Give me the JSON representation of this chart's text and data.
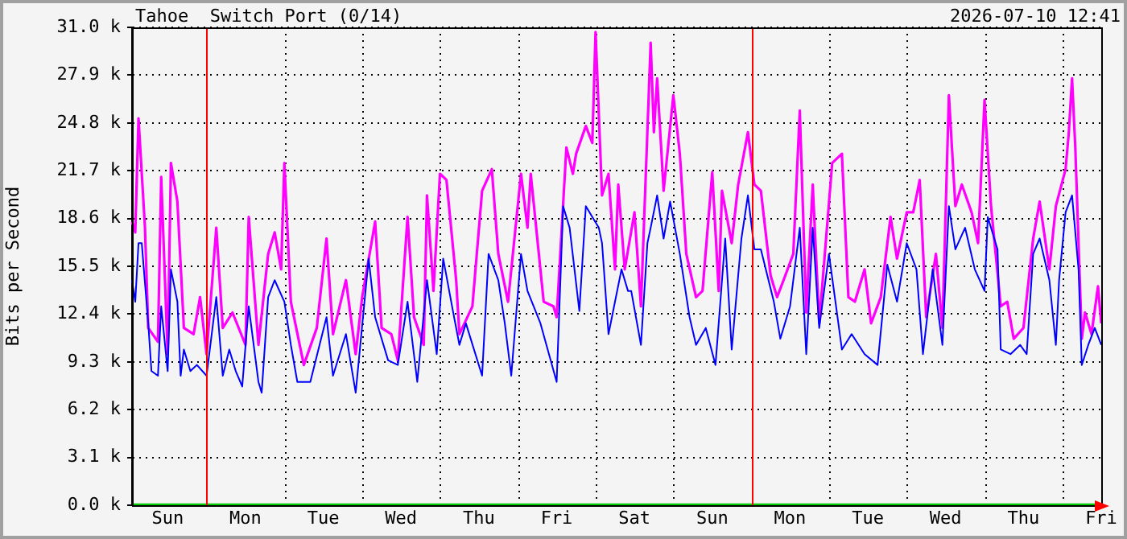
{
  "chart_data": {
    "type": "line",
    "title": "Tahoe  Switch Port (0/14)",
    "ylabel": "Bits per Second",
    "annotations": [
      "2026-07-10 12:41"
    ],
    "categories": [
      null,
      null,
      null,
      null,
      null,
      null,
      null,
      null,
      null,
      null,
      null,
      "Sun",
      null,
      null,
      null,
      null,
      null,
      null,
      null,
      null,
      null,
      null,
      null,
      null,
      null,
      null,
      null,
      null,
      null,
      null,
      null,
      null,
      null,
      null,
      null,
      "Mon",
      null,
      null,
      null,
      null,
      null,
      null,
      null,
      null,
      null,
      null,
      null,
      null,
      null,
      null,
      null,
      null,
      null,
      null,
      null,
      null,
      null,
      null,
      null,
      "Tue",
      null,
      null,
      null,
      null,
      null,
      null,
      null,
      null,
      null,
      null,
      null,
      null,
      null,
      null,
      null,
      null,
      null,
      null,
      null,
      null,
      null,
      null,
      null,
      "Wed",
      null,
      null,
      null,
      null,
      null,
      null,
      null,
      null,
      null,
      null,
      null,
      null,
      null,
      null,
      null,
      null,
      null,
      null,
      null,
      null,
      null,
      null,
      null,
      "Thu",
      null,
      null,
      null,
      null,
      null,
      null,
      null,
      null,
      null,
      null,
      null,
      null,
      null,
      null,
      null,
      null,
      null,
      null,
      null,
      null,
      null,
      null,
      null,
      "Fri",
      null,
      null,
      null,
      null,
      null,
      null,
      null,
      null,
      null,
      null,
      null,
      null,
      null,
      null,
      null,
      null,
      null,
      null,
      null,
      null,
      null,
      null,
      null,
      "Sat",
      null,
      null,
      null,
      null,
      null,
      null,
      null,
      null,
      null,
      null,
      null,
      null,
      null,
      null,
      null,
      null,
      null,
      null,
      null,
      null,
      null,
      null,
      null,
      "Sun",
      null,
      null,
      null,
      null,
      null,
      null,
      null,
      null,
      null,
      null,
      null,
      null,
      null,
      null,
      null,
      null,
      null,
      null,
      null,
      null,
      null,
      null,
      null,
      "Mon",
      null,
      null,
      null,
      null,
      null,
      null,
      null,
      null,
      null,
      null,
      null,
      null,
      null,
      null,
      null,
      null,
      null,
      null,
      null,
      null,
      null,
      null,
      null,
      "Tue",
      null,
      null,
      null,
      null,
      null,
      null,
      null,
      null,
      null,
      null,
      null,
      null,
      null,
      null,
      null,
      null,
      null,
      null,
      null,
      null,
      null,
      null,
      null,
      "Wed",
      null,
      null,
      null,
      null,
      null,
      null,
      null,
      null,
      null,
      null,
      null,
      null,
      null,
      null,
      null,
      null,
      null,
      null,
      null,
      null,
      null,
      null,
      null,
      "Thu",
      null,
      null,
      null,
      null,
      null,
      null,
      null,
      null,
      null,
      null,
      null,
      null,
      null,
      null,
      null,
      null,
      null,
      null,
      null,
      null,
      null,
      null,
      null,
      "Fri"
    ],
    "ylim": [
      0,
      31000
    ],
    "yticks": [
      {
        "value": 0,
        "label": "0.0 k"
      },
      {
        "value": 3100,
        "label": "3.1 k"
      },
      {
        "value": 6200,
        "label": "6.2 k"
      },
      {
        "value": 9300,
        "label": "9.3 k"
      },
      {
        "value": 12400,
        "label": "12.4 k"
      },
      {
        "value": 15500,
        "label": "15.5 k"
      },
      {
        "value": 18600,
        "label": "18.6 k"
      },
      {
        "value": 21700,
        "label": "21.7 k"
      },
      {
        "value": 24800,
        "label": "24.8 k"
      },
      {
        "value": 27900,
        "label": "27.9 k"
      },
      {
        "value": 31000,
        "label": "31.0 k"
      }
    ],
    "grid": true,
    "series": [
      {
        "color": "#00cc00",
        "values": [
          0,
          0,
          0,
          0,
          0,
          0,
          0,
          0,
          0,
          0,
          0,
          0,
          0,
          0,
          0,
          0,
          0,
          0,
          0,
          0,
          0,
          0,
          0,
          0,
          0,
          0,
          0,
          0,
          0,
          0,
          0,
          0,
          0,
          0,
          0,
          0,
          0,
          0,
          0,
          0,
          0,
          0,
          0,
          0,
          0,
          0,
          0,
          0,
          0,
          0,
          0,
          0,
          0,
          0,
          0,
          0,
          0,
          0,
          0,
          0,
          0,
          0,
          0,
          0,
          0,
          0,
          0,
          0,
          0,
          0,
          0,
          0,
          0,
          0,
          0,
          0,
          0,
          0,
          0,
          0,
          0,
          0,
          0,
          0,
          0,
          0,
          0,
          0,
          0,
          0,
          0,
          0,
          0,
          0,
          0,
          0,
          0,
          0,
          0,
          0,
          0,
          0,
          0,
          0,
          0,
          0,
          0,
          0,
          0,
          0,
          0,
          0,
          0,
          0,
          0,
          0,
          0,
          0,
          0,
          0,
          0,
          0,
          0,
          0,
          0,
          0,
          0,
          0,
          0,
          0,
          0,
          0,
          0,
          0,
          0,
          0,
          0,
          0,
          0,
          0,
          0,
          0,
          0,
          0,
          0,
          0,
          0,
          0,
          0,
          0,
          0,
          0,
          0,
          0,
          0,
          0,
          0,
          0,
          0,
          0,
          0,
          0,
          0,
          0,
          0,
          0,
          0,
          0,
          0,
          0,
          0,
          0,
          0,
          0,
          0,
          0,
          0,
          0,
          0,
          0,
          0,
          0,
          0,
          0,
          0,
          0,
          0,
          0,
          0,
          0,
          0,
          0,
          0,
          0,
          0,
          0,
          0,
          0,
          0,
          0,
          0,
          0,
          0,
          0,
          0,
          0,
          0,
          0,
          0,
          0,
          0,
          0,
          0,
          0,
          0,
          0,
          0,
          0,
          0,
          0,
          0,
          0,
          0,
          0,
          0,
          0,
          0,
          0,
          0,
          0,
          0,
          0,
          0,
          0,
          0,
          0,
          0,
          0,
          0,
          0,
          0,
          0,
          0,
          0,
          0,
          0,
          0,
          0,
          0,
          0,
          0,
          0,
          0,
          0,
          0,
          0,
          0,
          0,
          0,
          0,
          0,
          0,
          0,
          0,
          0,
          0,
          0,
          0,
          0,
          0,
          0,
          0,
          0,
          0,
          0,
          0,
          0,
          0,
          0,
          0,
          0,
          0,
          0,
          0,
          0,
          0,
          0,
          0,
          0,
          0,
          0,
          0,
          0,
          0,
          0,
          0,
          0,
          0,
          0,
          0
        ]
      },
      {
        "color": "#ff00ff",
        "values": [
          18400,
          17700,
          25100,
          null,
          18000,
          11500,
          null,
          null,
          10600,
          21300,
          null,
          9800,
          22200,
          null,
          19700,
          null,
          11500,
          null,
          null,
          11100,
          null,
          13500,
          null,
          9800,
          null,
          null,
          18000,
          null,
          11500,
          null,
          null,
          12500,
          null,
          null,
          null,
          10400,
          18700,
          null,
          null,
          10400,
          null,
          null,
          16300,
          null,
          17700,
          null,
          15300,
          22200,
          null,
          13200,
          null,
          null,
          null,
          9100,
          null,
          null,
          null,
          11500,
          null,
          null,
          17300,
          null,
          11100,
          null,
          null,
          null,
          14600,
          null,
          null,
          9800,
          null,
          13500,
          null,
          null,
          null,
          18400,
          null,
          11500,
          null,
          null,
          11100,
          null,
          9400,
          null,
          null,
          18700,
          null,
          12200,
          null,
          null,
          10400,
          20100,
          null,
          13900,
          null,
          21500,
          null,
          21100,
          null,
          null,
          14600,
          11100,
          null,
          null,
          null,
          12900,
          null,
          null,
          20400,
          null,
          null,
          21800,
          null,
          16300,
          null,
          null,
          13200,
          null,
          null,
          null,
          21500,
          null,
          18000,
          21500,
          null,
          null,
          null,
          13200,
          null,
          null,
          12900,
          12200,
          null,
          null,
          23200,
          null,
          21500,
          22800,
          null,
          null,
          24600,
          null,
          23500,
          30700,
          null,
          20100,
          null,
          21500,
          null,
          15300,
          20800,
          null,
          15300,
          null,
          null,
          19000,
          null,
          12900,
          null,
          null,
          30000,
          24200,
          27700,
          null,
          20400,
          null,
          null,
          26600,
          null,
          22800,
          null,
          16300,
          null,
          null,
          13500,
          null,
          13900,
          null,
          null,
          21600,
          null,
          13900,
          20400,
          null,
          null,
          17000,
          null,
          20800,
          null,
          null,
          24200,
          null,
          20800,
          null,
          20400,
          null,
          null,
          14900,
          null,
          13500,
          null,
          14600,
          null,
          null,
          16300,
          null,
          25600,
          null,
          12500,
          null,
          20800,
          null,
          11800,
          null,
          null,
          null,
          22200,
          null,
          null,
          22800,
          null,
          13500,
          null,
          13200,
          null,
          null,
          15300,
          null,
          11800,
          null,
          null,
          13500,
          null,
          null,
          18700,
          null,
          16000,
          null,
          null,
          19000,
          null,
          19000,
          null,
          21100,
          null,
          12200,
          null,
          null,
          16300,
          null,
          11500,
          null,
          26600,
          null,
          19400,
          null,
          20800,
          null,
          null,
          19000,
          null,
          17000,
          null,
          26300,
          null,
          19400,
          null,
          null,
          12900,
          null,
          13200,
          null,
          10800,
          null,
          null,
          11500,
          null,
          null,
          17300,
          null,
          19700,
          null,
          null,
          15300,
          null,
          19400,
          null,
          null,
          21800,
          24200,
          27700,
          23200,
          null,
          10800,
          12500,
          null,
          11100,
          null,
          14200,
          11800
        ]
      },
      {
        "color": "#0000ff",
        "values": [
          14600,
          13200,
          17000,
          17000,
          null,
          11800,
          8700,
          null,
          8400,
          12900,
          null,
          8700,
          15300,
          null,
          13200,
          8400,
          10100,
          null,
          8700,
          null,
          9100,
          null,
          null,
          8400,
          null,
          null,
          13500,
          null,
          8400,
          null,
          10100,
          null,
          8700,
          null,
          7700,
          null,
          12900,
          null,
          null,
          8000,
          7300,
          null,
          13500,
          null,
          14600,
          null,
          null,
          13200,
          null,
          10400,
          null,
          8000,
          null,
          null,
          null,
          8000,
          null,
          null,
          null,
          null,
          12200,
          null,
          8400,
          null,
          null,
          null,
          11100,
          null,
          null,
          7300,
          null,
          null,
          null,
          16000,
          null,
          12200,
          null,
          null,
          null,
          9400,
          null,
          null,
          9100,
          null,
          null,
          13200,
          null,
          null,
          8000,
          null,
          null,
          14600,
          null,
          null,
          9800,
          null,
          16000,
          null,
          null,
          12600,
          null,
          10400,
          null,
          11800,
          null,
          null,
          null,
          null,
          8400,
          null,
          16300,
          null,
          null,
          14600,
          null,
          11800,
          null,
          8400,
          null,
          null,
          16300,
          null,
          13900,
          null,
          null,
          null,
          11800,
          null,
          null,
          null,
          null,
          8000,
          null,
          19400,
          null,
          18000,
          null,
          null,
          12600,
          null,
          19400,
          null,
          18700,
          null,
          18000,
          17000,
          null,
          11100,
          null,
          13200,
          null,
          15300,
          null,
          13900,
          13900,
          null,
          null,
          10400,
          null,
          17000,
          18000,
          null,
          20100,
          null,
          17300,
          null,
          19700,
          null,
          null,
          16300,
          null,
          null,
          12200,
          null,
          10400,
          null,
          null,
          11500,
          null,
          null,
          9100,
          null,
          null,
          17300,
          null,
          10100,
          null,
          null,
          17300,
          null,
          20100,
          null,
          16600,
          null,
          16600,
          null,
          null,
          null,
          13200,
          null,
          10800,
          null,
          null,
          12900,
          null,
          null,
          18000,
          null,
          9800,
          null,
          18000,
          null,
          11500,
          null,
          null,
          16300,
          null,
          null,
          null,
          10100,
          null,
          null,
          11100,
          null,
          null,
          null,
          9800,
          null,
          null,
          null,
          9100,
          null,
          null,
          15600,
          null,
          null,
          13200,
          null,
          null,
          17000,
          null,
          null,
          15300,
          null,
          9800,
          null,
          null,
          15300,
          null,
          null,
          10400,
          null,
          19400,
          null,
          16600,
          null,
          null,
          18000,
          null,
          null,
          15300,
          null,
          null,
          13900,
          18700,
          null,
          null,
          16600,
          10100,
          null,
          null,
          9800,
          null,
          null,
          10400,
          null,
          9800,
          null,
          16300,
          null,
          17300,
          null,
          null,
          14600,
          null,
          10400,
          14600,
          null,
          19000,
          null,
          20100,
          null,
          15300,
          9100,
          null,
          10400,
          null,
          11500,
          null,
          10400
        ]
      }
    ]
  }
}
